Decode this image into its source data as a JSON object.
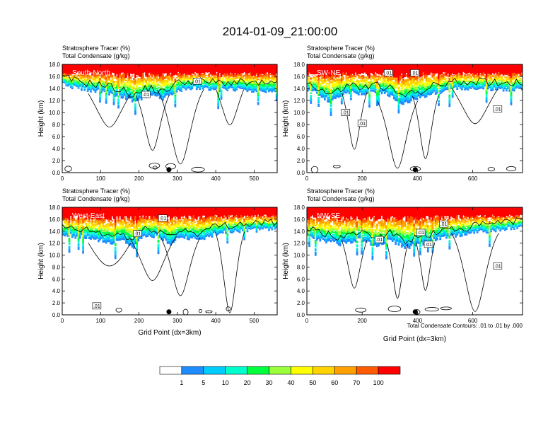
{
  "page_title": "2014-01-09_21:00:00",
  "footnote": "Total Condensate Contours: .01 to .01 by .000",
  "colors": {
    "levels": [
      "#ffffff",
      "#1e8cff",
      "#00cdff",
      "#00ffcd",
      "#00ff3c",
      "#9bff3c",
      "#ffff00",
      "#ffd200",
      "#ffa000",
      "#ff5a00",
      "#ff0000"
    ],
    "contour": "#000000"
  },
  "chart_data": [
    {
      "type": "contour",
      "title_line1": "Stratosphere Tracer   (%)",
      "title_line2": "Total Condensate   (g/kg)",
      "panel_label": "South-North",
      "xlabel": "",
      "ylabel": "Height (km)",
      "xlim": [
        0,
        560
      ],
      "ylim": [
        0,
        18
      ],
      "x_ticks": [
        0,
        100,
        200,
        300,
        400,
        500
      ],
      "y_ticks": [
        "0.0",
        "2.0",
        "4.0",
        "6.0",
        "8.0",
        "10.0",
        "12.0",
        "14.0",
        "16.0",
        "18.0"
      ],
      "marker_x": 278,
      "contour_labels": [
        {
          "x": 352,
          "y": 15.2,
          "text": ".01"
        },
        {
          "x": 218,
          "y": 13.0,
          "text": ".01"
        }
      ],
      "tracer_base_profile": [
        [
          0,
          14.6
        ],
        [
          40,
          14.0
        ],
        [
          80,
          13.6
        ],
        [
          120,
          13.2
        ],
        [
          150,
          12.6
        ],
        [
          170,
          12.2
        ],
        [
          190,
          11.6
        ],
        [
          210,
          12.5
        ],
        [
          230,
          13.0
        ],
        [
          260,
          12.0
        ],
        [
          290,
          13.5
        ],
        [
          320,
          14.0
        ],
        [
          360,
          14.0
        ],
        [
          400,
          13.8
        ],
        [
          450,
          13.8
        ],
        [
          500,
          13.6
        ],
        [
          560,
          13.5
        ]
      ]
    },
    {
      "type": "contour",
      "title_line1": "Stratosphere Tracer   (%)",
      "title_line2": "Total Condensate   (g/kg)",
      "panel_label": "SW-NE",
      "xlabel": "",
      "ylabel": "Height (km)",
      "xlim": [
        0,
        780
      ],
      "ylim": [
        0,
        18
      ],
      "x_ticks": [
        0,
        200,
        400,
        600
      ],
      "y_ticks": [
        "0.0",
        "2.0",
        "4.0",
        "6.0",
        "8.0",
        "10.0",
        "12.0",
        "14.0",
        "16.0",
        "18.0"
      ],
      "marker_x": 392,
      "contour_labels": [
        {
          "x": 140,
          "y": 10.0,
          "text": ".01"
        },
        {
          "x": 200,
          "y": 8.2,
          "text": ".01"
        },
        {
          "x": 390,
          "y": 16.6,
          "text": ".01"
        },
        {
          "x": 295,
          "y": 16.6,
          "text": ".01"
        },
        {
          "x": 690,
          "y": 10.6,
          "text": ".01"
        }
      ],
      "tracer_base_profile": [
        [
          0,
          13.8
        ],
        [
          40,
          13.0
        ],
        [
          80,
          11.8
        ],
        [
          120,
          12.5
        ],
        [
          160,
          13.5
        ],
        [
          200,
          12.8
        ],
        [
          260,
          13.4
        ],
        [
          300,
          12.8
        ],
        [
          340,
          11.5
        ],
        [
          380,
          12.0
        ],
        [
          420,
          12.6
        ],
        [
          460,
          13.2
        ],
        [
          520,
          13.8
        ],
        [
          600,
          14.0
        ],
        [
          700,
          13.8
        ],
        [
          780,
          13.8
        ]
      ]
    },
    {
      "type": "contour",
      "title_line1": "Stratosphere Tracer   (%)",
      "title_line2": "Total Condensate   (g/kg)",
      "panel_label": "West-East",
      "xlabel": "Grid Point (dx=3km)",
      "ylabel": "Height (km)",
      "xlim": [
        0,
        560
      ],
      "ylim": [
        0,
        18
      ],
      "x_ticks": [
        0,
        100,
        200,
        300,
        400,
        500
      ],
      "y_ticks": [
        "0.0",
        "2.0",
        "4.0",
        "6.0",
        "8.0",
        "10.0",
        "12.0",
        "14.0",
        "16.0",
        "18.0"
      ],
      "marker_x": 278,
      "contour_labels": [
        {
          "x": 196,
          "y": 13.6,
          "text": ".01"
        },
        {
          "x": 262,
          "y": 16.2,
          "text": ".01"
        },
        {
          "x": 90,
          "y": 1.5,
          "text": ".01"
        }
      ],
      "tracer_base_profile": [
        [
          0,
          13.4
        ],
        [
          40,
          13.0
        ],
        [
          80,
          12.8
        ],
        [
          120,
          12.0
        ],
        [
          160,
          12.4
        ],
        [
          180,
          11.0
        ],
        [
          200,
          12.8
        ],
        [
          240,
          13.2
        ],
        [
          280,
          12.0
        ],
        [
          310,
          13.0
        ],
        [
          360,
          12.5
        ],
        [
          400,
          13.6
        ],
        [
          460,
          14.0
        ],
        [
          520,
          14.2
        ],
        [
          560,
          14.4
        ]
      ]
    },
    {
      "type": "contour",
      "title_line1": "Stratosphere Tracer   (%)",
      "title_line2": "Total Condensate   (g/kg)",
      "panel_label": "NW-SE",
      "xlabel": "Grid Point (dx=3km)",
      "ylabel": "Height (km)",
      "xlim": [
        0,
        780
      ],
      "ylim": [
        0,
        18
      ],
      "x_ticks": [
        0,
        200,
        400,
        600
      ],
      "y_ticks": [
        "0.0",
        "2.0",
        "4.0",
        "6.0",
        "8.0",
        "10.0",
        "12.0",
        "14.0",
        "16.0",
        "18.0"
      ],
      "marker_x": 392,
      "contour_labels": [
        {
          "x": 262,
          "y": 12.6,
          "text": ".01"
        },
        {
          "x": 412,
          "y": 13.8,
          "text": ".01"
        },
        {
          "x": 440,
          "y": 11.8,
          "text": ".01"
        },
        {
          "x": 495,
          "y": 15.2,
          "text": ".01"
        },
        {
          "x": 690,
          "y": 8.2,
          "text": ".01"
        }
      ],
      "tracer_base_profile": [
        [
          0,
          13.2
        ],
        [
          60,
          12.4
        ],
        [
          120,
          11.8
        ],
        [
          180,
          12.6
        ],
        [
          240,
          11.6
        ],
        [
          300,
          12.4
        ],
        [
          360,
          11.2
        ],
        [
          420,
          12.0
        ],
        [
          480,
          12.8
        ],
        [
          540,
          13.2
        ],
        [
          600,
          13.6
        ],
        [
          680,
          14.2
        ],
        [
          780,
          14.6
        ]
      ]
    }
  ],
  "colorbar": {
    "tick_labels": [
      "1",
      "5",
      "10",
      "20",
      "30",
      "40",
      "50",
      "60",
      "70",
      "100"
    ]
  }
}
